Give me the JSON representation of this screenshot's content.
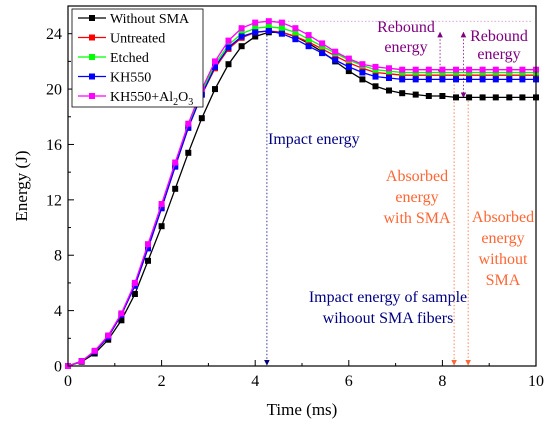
{
  "chart_data": {
    "type": "line",
    "title": "",
    "xlabel": "Time (ms)",
    "ylabel": "Energy (J)",
    "xlim": [
      0,
      10
    ],
    "ylim": [
      0,
      26
    ],
    "xticks": [
      0,
      2,
      4,
      6,
      8,
      10
    ],
    "yticks": [
      0,
      4,
      8,
      12,
      16,
      20,
      24
    ],
    "grid": false,
    "legend_position": "top-left",
    "x": [
      0,
      0.29,
      0.57,
      0.86,
      1.14,
      1.43,
      1.71,
      2.0,
      2.29,
      2.57,
      2.86,
      3.14,
      3.43,
      3.71,
      4.0,
      4.29,
      4.57,
      4.86,
      5.14,
      5.43,
      5.71,
      6.0,
      6.29,
      6.57,
      6.86,
      7.14,
      7.43,
      7.71,
      8.0,
      8.29,
      8.57,
      8.86,
      9.14,
      9.43,
      9.71,
      10.0
    ],
    "series": [
      {
        "name": "Without SMA",
        "legend_label": "Without SMA",
        "color": "#000000",
        "marker": "square",
        "values": [
          0.0,
          0.3,
          0.9,
          1.9,
          3.3,
          5.2,
          7.6,
          10.1,
          12.8,
          15.4,
          17.9,
          20.0,
          21.8,
          23.1,
          23.8,
          24.1,
          24.1,
          23.8,
          23.3,
          22.7,
          22.0,
          21.3,
          20.7,
          20.2,
          19.9,
          19.7,
          19.6,
          19.5,
          19.5,
          19.4,
          19.4,
          19.4,
          19.4,
          19.4,
          19.4,
          19.4
        ]
      },
      {
        "name": "Untreated",
        "legend_label": "Untreated",
        "color": "#ff0000",
        "marker": "square",
        "values": [
          0.0,
          0.35,
          1.05,
          2.1,
          3.7,
          5.8,
          8.5,
          11.4,
          14.4,
          17.2,
          19.6,
          21.5,
          22.9,
          23.7,
          24.1,
          24.2,
          24.1,
          23.8,
          23.4,
          22.9,
          22.4,
          21.9,
          21.5,
          21.2,
          21.1,
          21.0,
          21.0,
          21.0,
          21.0,
          21.0,
          21.0,
          21.0,
          21.0,
          21.0,
          21.0,
          21.0
        ]
      },
      {
        "name": "Etched",
        "legend_label": "Etched",
        "color": "#00ff00",
        "marker": "square",
        "values": [
          0.0,
          0.35,
          1.05,
          2.15,
          3.75,
          5.9,
          8.6,
          11.5,
          14.5,
          17.3,
          19.8,
          21.8,
          23.2,
          24.0,
          24.4,
          24.5,
          24.4,
          24.1,
          23.6,
          23.1,
          22.6,
          22.1,
          21.7,
          21.4,
          21.3,
          21.2,
          21.2,
          21.2,
          21.2,
          21.2,
          21.2,
          21.2,
          21.2,
          21.2,
          21.2,
          21.2
        ]
      },
      {
        "name": "KH550",
        "legend_label": "KH550",
        "color": "#0000ff",
        "marker": "square",
        "values": [
          0.0,
          0.35,
          1.05,
          2.1,
          3.7,
          5.8,
          8.5,
          11.4,
          14.4,
          17.2,
          19.6,
          21.6,
          23.0,
          23.8,
          24.1,
          24.2,
          24.0,
          23.6,
          23.1,
          22.6,
          22.1,
          21.6,
          21.2,
          20.9,
          20.8,
          20.7,
          20.7,
          20.7,
          20.7,
          20.7,
          20.7,
          20.7,
          20.7,
          20.7,
          20.7,
          20.7
        ]
      },
      {
        "name": "KH550+Al2O3",
        "legend_label": "KH550+Al",
        "legend_sub": "2",
        "legend_tail": "O",
        "legend_sub2": "3",
        "color": "#ff00ff",
        "marker": "square",
        "values": [
          0.0,
          0.35,
          1.1,
          2.2,
          3.8,
          6.0,
          8.8,
          11.7,
          14.7,
          17.5,
          20.0,
          22.0,
          23.5,
          24.4,
          24.8,
          24.9,
          24.8,
          24.4,
          23.9,
          23.3,
          22.7,
          22.2,
          21.8,
          21.6,
          21.5,
          21.4,
          21.4,
          21.4,
          21.4,
          21.4,
          21.4,
          21.4,
          21.4,
          21.4,
          21.4,
          21.4
        ]
      }
    ],
    "annotations": [
      {
        "id": "rebound1",
        "text_lines": [
          "Rebound",
          "energy"
        ],
        "color": "#800080"
      },
      {
        "id": "rebound2",
        "text_lines": [
          "Rebound",
          "energy"
        ],
        "color": "#800080"
      },
      {
        "id": "impact",
        "text_lines": [
          "Impact energy"
        ],
        "color": "#000080"
      },
      {
        "id": "absorbed_with",
        "text_lines": [
          "Absorbed",
          "energy",
          "with SMA"
        ],
        "color": "#ff6633"
      },
      {
        "id": "absorbed_without",
        "text_lines": [
          "Absorbed",
          "energy",
          "without",
          "SMA"
        ],
        "color": "#ff6633"
      },
      {
        "id": "impact_sample",
        "text_lines": [
          "Impact energy of sample",
          "wihoout SMA fibers"
        ],
        "color": "#000080"
      }
    ],
    "reference_lines": {
      "impact_time": 4.25,
      "peak_energy": 24.9,
      "absorbed_with_time": 8.25,
      "absorbed_without_time": 8.55,
      "rebound_arrow1_time": 7.95,
      "rebound_arrow2_time": 8.45,
      "rebound_arrow_top": 24.1,
      "rebound_arrow1_bottom": 21.1,
      "rebound_arrow2_bottom": 19.4,
      "absorbed_with_level": 21.1,
      "absorbed_without_level": 19.4
    }
  }
}
